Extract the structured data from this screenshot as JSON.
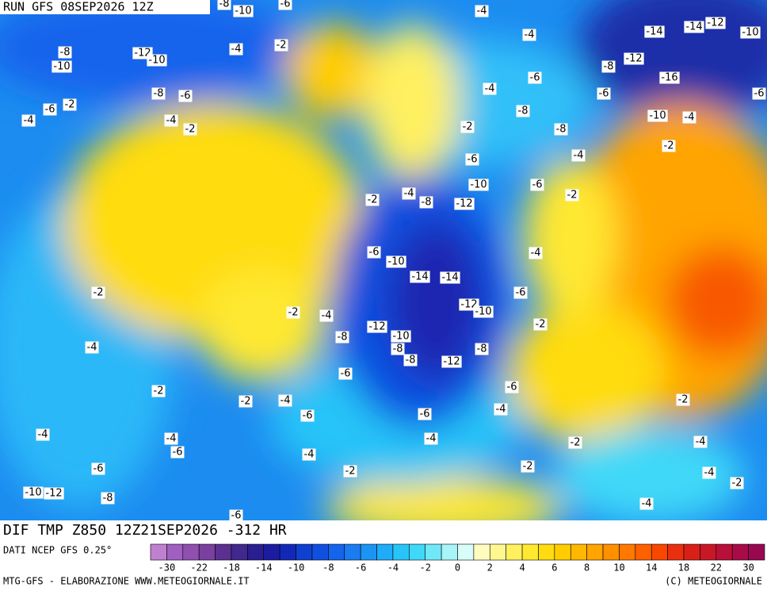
{
  "header": {
    "run": "RUN GFS 08SEP2026 12Z"
  },
  "footer": {
    "title": "DIF TMP Z850 12Z21SEP2026 -312 HR",
    "source": "DATI NCEP GFS 0.25°",
    "credit": "MTG-GFS - ELABORAZIONE WWW.METEOGIORNALE.IT",
    "copyright": "(C) METEOGIORNALE"
  },
  "legend": {
    "ticks": [
      -30,
      -22,
      -18,
      -14,
      -10,
      -8,
      -6,
      -4,
      -2,
      0,
      2,
      4,
      6,
      8,
      10,
      14,
      18,
      22,
      30
    ],
    "colors": [
      "#c080d0",
      "#a060c0",
      "#9050b0",
      "#7a40a0",
      "#5a3090",
      "#40288c",
      "#2a1e90",
      "#1c1ca0",
      "#1428b8",
      "#1040d0",
      "#1050e0",
      "#1464ec",
      "#1a7cf0",
      "#1c94f4",
      "#20acf8",
      "#28c4f8",
      "#40d8f8",
      "#70e8f8",
      "#a8f4f8",
      "#d8fcf8",
      "#fffcc0",
      "#fff890",
      "#fff060",
      "#ffe830",
      "#ffdc10",
      "#ffcc00",
      "#ffb800",
      "#ffa400",
      "#ff9000",
      "#ff7800",
      "#ff6000",
      "#f84800",
      "#e83010",
      "#d82018",
      "#c81828",
      "#b81038",
      "#a80c48",
      "#980850"
    ]
  },
  "contour_labels": [
    -8,
    -10,
    -6,
    -4,
    -4,
    -2,
    -4,
    -8,
    -10,
    -12,
    -10,
    -14,
    -14,
    -12,
    -10,
    -12,
    -8,
    -16,
    -6,
    -4,
    -6,
    -8,
    -6,
    -6,
    -2,
    -6,
    -8,
    -4,
    -4,
    -2,
    -10,
    -4,
    -2,
    -8,
    -2,
    -4,
    -6,
    -10,
    -6,
    -2,
    -4,
    -2,
    -8,
    -12,
    -6,
    -10,
    -4,
    -14,
    -14,
    -2,
    -6,
    -12,
    -10,
    -2,
    -4,
    -12,
    -10,
    -2,
    -8,
    -8,
    -8,
    -4,
    -8,
    -12,
    -6,
    -6,
    -2,
    -2,
    -4,
    -4,
    -2,
    -6,
    -6,
    -4,
    -4,
    -4,
    -2,
    -4,
    -6,
    -4,
    -6,
    -2,
    -2,
    -4,
    -2,
    -10,
    -12,
    -8,
    -4,
    -6
  ]
}
